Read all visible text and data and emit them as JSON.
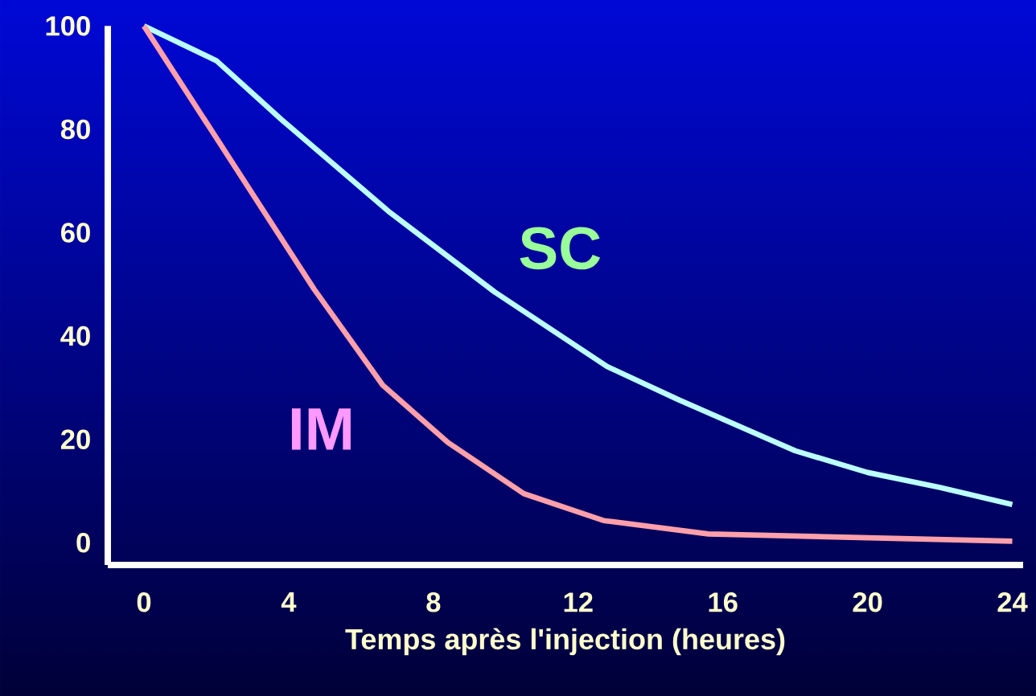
{
  "chart_data": {
    "type": "line",
    "xlabel": "Temps après l'injection (heures)",
    "xlim": [
      -1,
      24.3
    ],
    "ylim": [
      -4.3,
      100
    ],
    "xticks": [
      0,
      4,
      8,
      12,
      16,
      20,
      24
    ],
    "yticks": [
      0,
      20,
      40,
      60,
      80,
      100
    ],
    "grid": false,
    "legend": false,
    "marker": "none",
    "line_style": "solid",
    "series": [
      {
        "name": "SC",
        "color": "#bbffff",
        "x": [
          0,
          2,
          3.8,
          6.8,
          9.7,
          12.8,
          14.8,
          18,
          20,
          22,
          24
        ],
        "values": [
          100,
          93.3,
          81.9,
          63.9,
          48.5,
          34.1,
          27.6,
          17.8,
          13.6,
          10.7,
          7.4
        ]
      },
      {
        "name": "IM",
        "color": "#ffa0aa",
        "x": [
          0,
          4.7,
          6.6,
          8.4,
          10.5,
          12.7,
          15.6,
          24
        ],
        "values": [
          100,
          49.1,
          30.5,
          19.4,
          9.5,
          4.3,
          1.7,
          0.3
        ]
      }
    ]
  }
}
